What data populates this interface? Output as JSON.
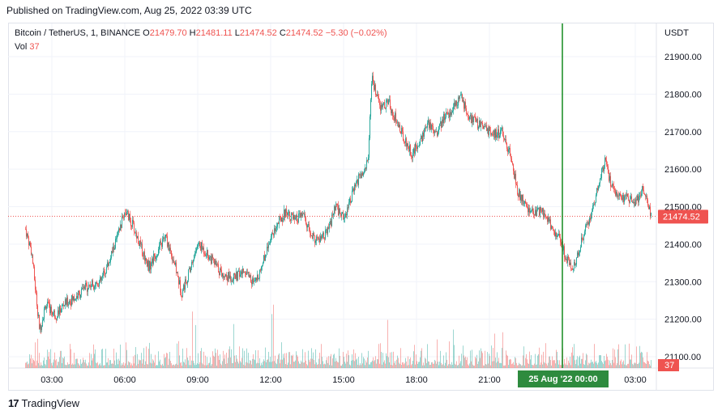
{
  "header": {
    "published": "Published on TradingView.com, Aug 25, 2022 03:39 UTC"
  },
  "legend": {
    "symbol": "Bitcoin / TetherUS, 1, BINANCE",
    "o_label": "O",
    "o_value": "21479.70",
    "h_label": "H",
    "h_value": "21481.11",
    "l_label": "L",
    "l_value": "21474.52",
    "c_label": "C",
    "c_value": "21474.52",
    "change": "−5.30 (−0.02%)",
    "vol_label": "Vol",
    "vol_value": "37"
  },
  "axis": {
    "currency": "USDT",
    "price_badge": "21474.52",
    "vol_badge": "37",
    "crosshair_label": "25 Aug '22  00:00"
  },
  "footer": {
    "brand": "TradingView"
  },
  "colors": {
    "up": "#26a69a",
    "down": "#ef5350",
    "crosshair": "#138a1f",
    "badge_time": "#2e8b3e"
  },
  "chart_data": {
    "type": "candlestick",
    "symbol": "Bitcoin / TetherUS",
    "interval": "1",
    "exchange": "BINANCE",
    "ylim": [
      21050,
      21950
    ],
    "y_ticks": [
      21100,
      21200,
      21300,
      21400,
      21500,
      21600,
      21700,
      21800,
      21900
    ],
    "x_ticks": [
      "03:00",
      "06:00",
      "09:00",
      "12:00",
      "15:00",
      "18:00",
      "21:00",
      "03:00"
    ],
    "last_price": 21474.52,
    "crosshair_time": "25 Aug '22 00:00",
    "price_path": [
      {
        "t": "01:55",
        "p": 21440
      },
      {
        "t": "02:10",
        "p": 21380
      },
      {
        "t": "02:30",
        "p": 21170
      },
      {
        "t": "02:45",
        "p": 21240
      },
      {
        "t": "03:10",
        "p": 21210
      },
      {
        "t": "03:30",
        "p": 21240
      },
      {
        "t": "04:00",
        "p": 21260
      },
      {
        "t": "04:30",
        "p": 21290
      },
      {
        "t": "05:00",
        "p": 21300
      },
      {
        "t": "05:20",
        "p": 21350
      },
      {
        "t": "05:45",
        "p": 21430
      },
      {
        "t": "06:00",
        "p": 21490
      },
      {
        "t": "06:20",
        "p": 21450
      },
      {
        "t": "06:40",
        "p": 21390
      },
      {
        "t": "07:00",
        "p": 21340
      },
      {
        "t": "07:20",
        "p": 21380
      },
      {
        "t": "07:40",
        "p": 21420
      },
      {
        "t": "08:00",
        "p": 21360
      },
      {
        "t": "08:20",
        "p": 21270
      },
      {
        "t": "08:40",
        "p": 21330
      },
      {
        "t": "09:00",
        "p": 21400
      },
      {
        "t": "09:20",
        "p": 21380
      },
      {
        "t": "09:40",
        "p": 21350
      },
      {
        "t": "10:00",
        "p": 21320
      },
      {
        "t": "10:30",
        "p": 21310
      },
      {
        "t": "11:00",
        "p": 21330
      },
      {
        "t": "11:20",
        "p": 21290
      },
      {
        "t": "11:40",
        "p": 21350
      },
      {
        "t": "12:00",
        "p": 21420
      },
      {
        "t": "12:20",
        "p": 21460
      },
      {
        "t": "12:40",
        "p": 21490
      },
      {
        "t": "13:00",
        "p": 21460
      },
      {
        "t": "13:20",
        "p": 21480
      },
      {
        "t": "13:40",
        "p": 21420
      },
      {
        "t": "14:00",
        "p": 21410
      },
      {
        "t": "14:20",
        "p": 21430
      },
      {
        "t": "14:40",
        "p": 21500
      },
      {
        "t": "15:00",
        "p": 21470
      },
      {
        "t": "15:20",
        "p": 21530
      },
      {
        "t": "15:40",
        "p": 21580
      },
      {
        "t": "16:00",
        "p": 21620
      },
      {
        "t": "16:10",
        "p": 21840
      },
      {
        "t": "16:30",
        "p": 21760
      },
      {
        "t": "16:50",
        "p": 21780
      },
      {
        "t": "17:10",
        "p": 21730
      },
      {
        "t": "17:30",
        "p": 21680
      },
      {
        "t": "17:50",
        "p": 21640
      },
      {
        "t": "18:10",
        "p": 21680
      },
      {
        "t": "18:30",
        "p": 21720
      },
      {
        "t": "18:50",
        "p": 21700
      },
      {
        "t": "19:10",
        "p": 21740
      },
      {
        "t": "19:30",
        "p": 21760
      },
      {
        "t": "19:50",
        "p": 21790
      },
      {
        "t": "20:10",
        "p": 21740
      },
      {
        "t": "20:30",
        "p": 21720
      },
      {
        "t": "20:50",
        "p": 21710
      },
      {
        "t": "21:10",
        "p": 21690
      },
      {
        "t": "21:30",
        "p": 21700
      },
      {
        "t": "21:50",
        "p": 21640
      },
      {
        "t": "22:10",
        "p": 21540
      },
      {
        "t": "22:30",
        "p": 21500
      },
      {
        "t": "22:50",
        "p": 21480
      },
      {
        "t": "23:10",
        "p": 21490
      },
      {
        "t": "23:30",
        "p": 21450
      },
      {
        "t": "23:50",
        "p": 21420
      },
      {
        "t": "00:10",
        "p": 21360
      },
      {
        "t": "00:30",
        "p": 21340
      },
      {
        "t": "00:50",
        "p": 21420
      },
      {
        "t": "01:10",
        "p": 21480
      },
      {
        "t": "01:30",
        "p": 21560
      },
      {
        "t": "01:45",
        "p": 21620
      },
      {
        "t": "02:00",
        "p": 21560
      },
      {
        "t": "02:20",
        "p": 21530
      },
      {
        "t": "02:40",
        "p": 21520
      },
      {
        "t": "03:00",
        "p": 21510
      },
      {
        "t": "03:20",
        "p": 21550
      },
      {
        "t": "03:39",
        "p": 21474.52
      }
    ]
  }
}
